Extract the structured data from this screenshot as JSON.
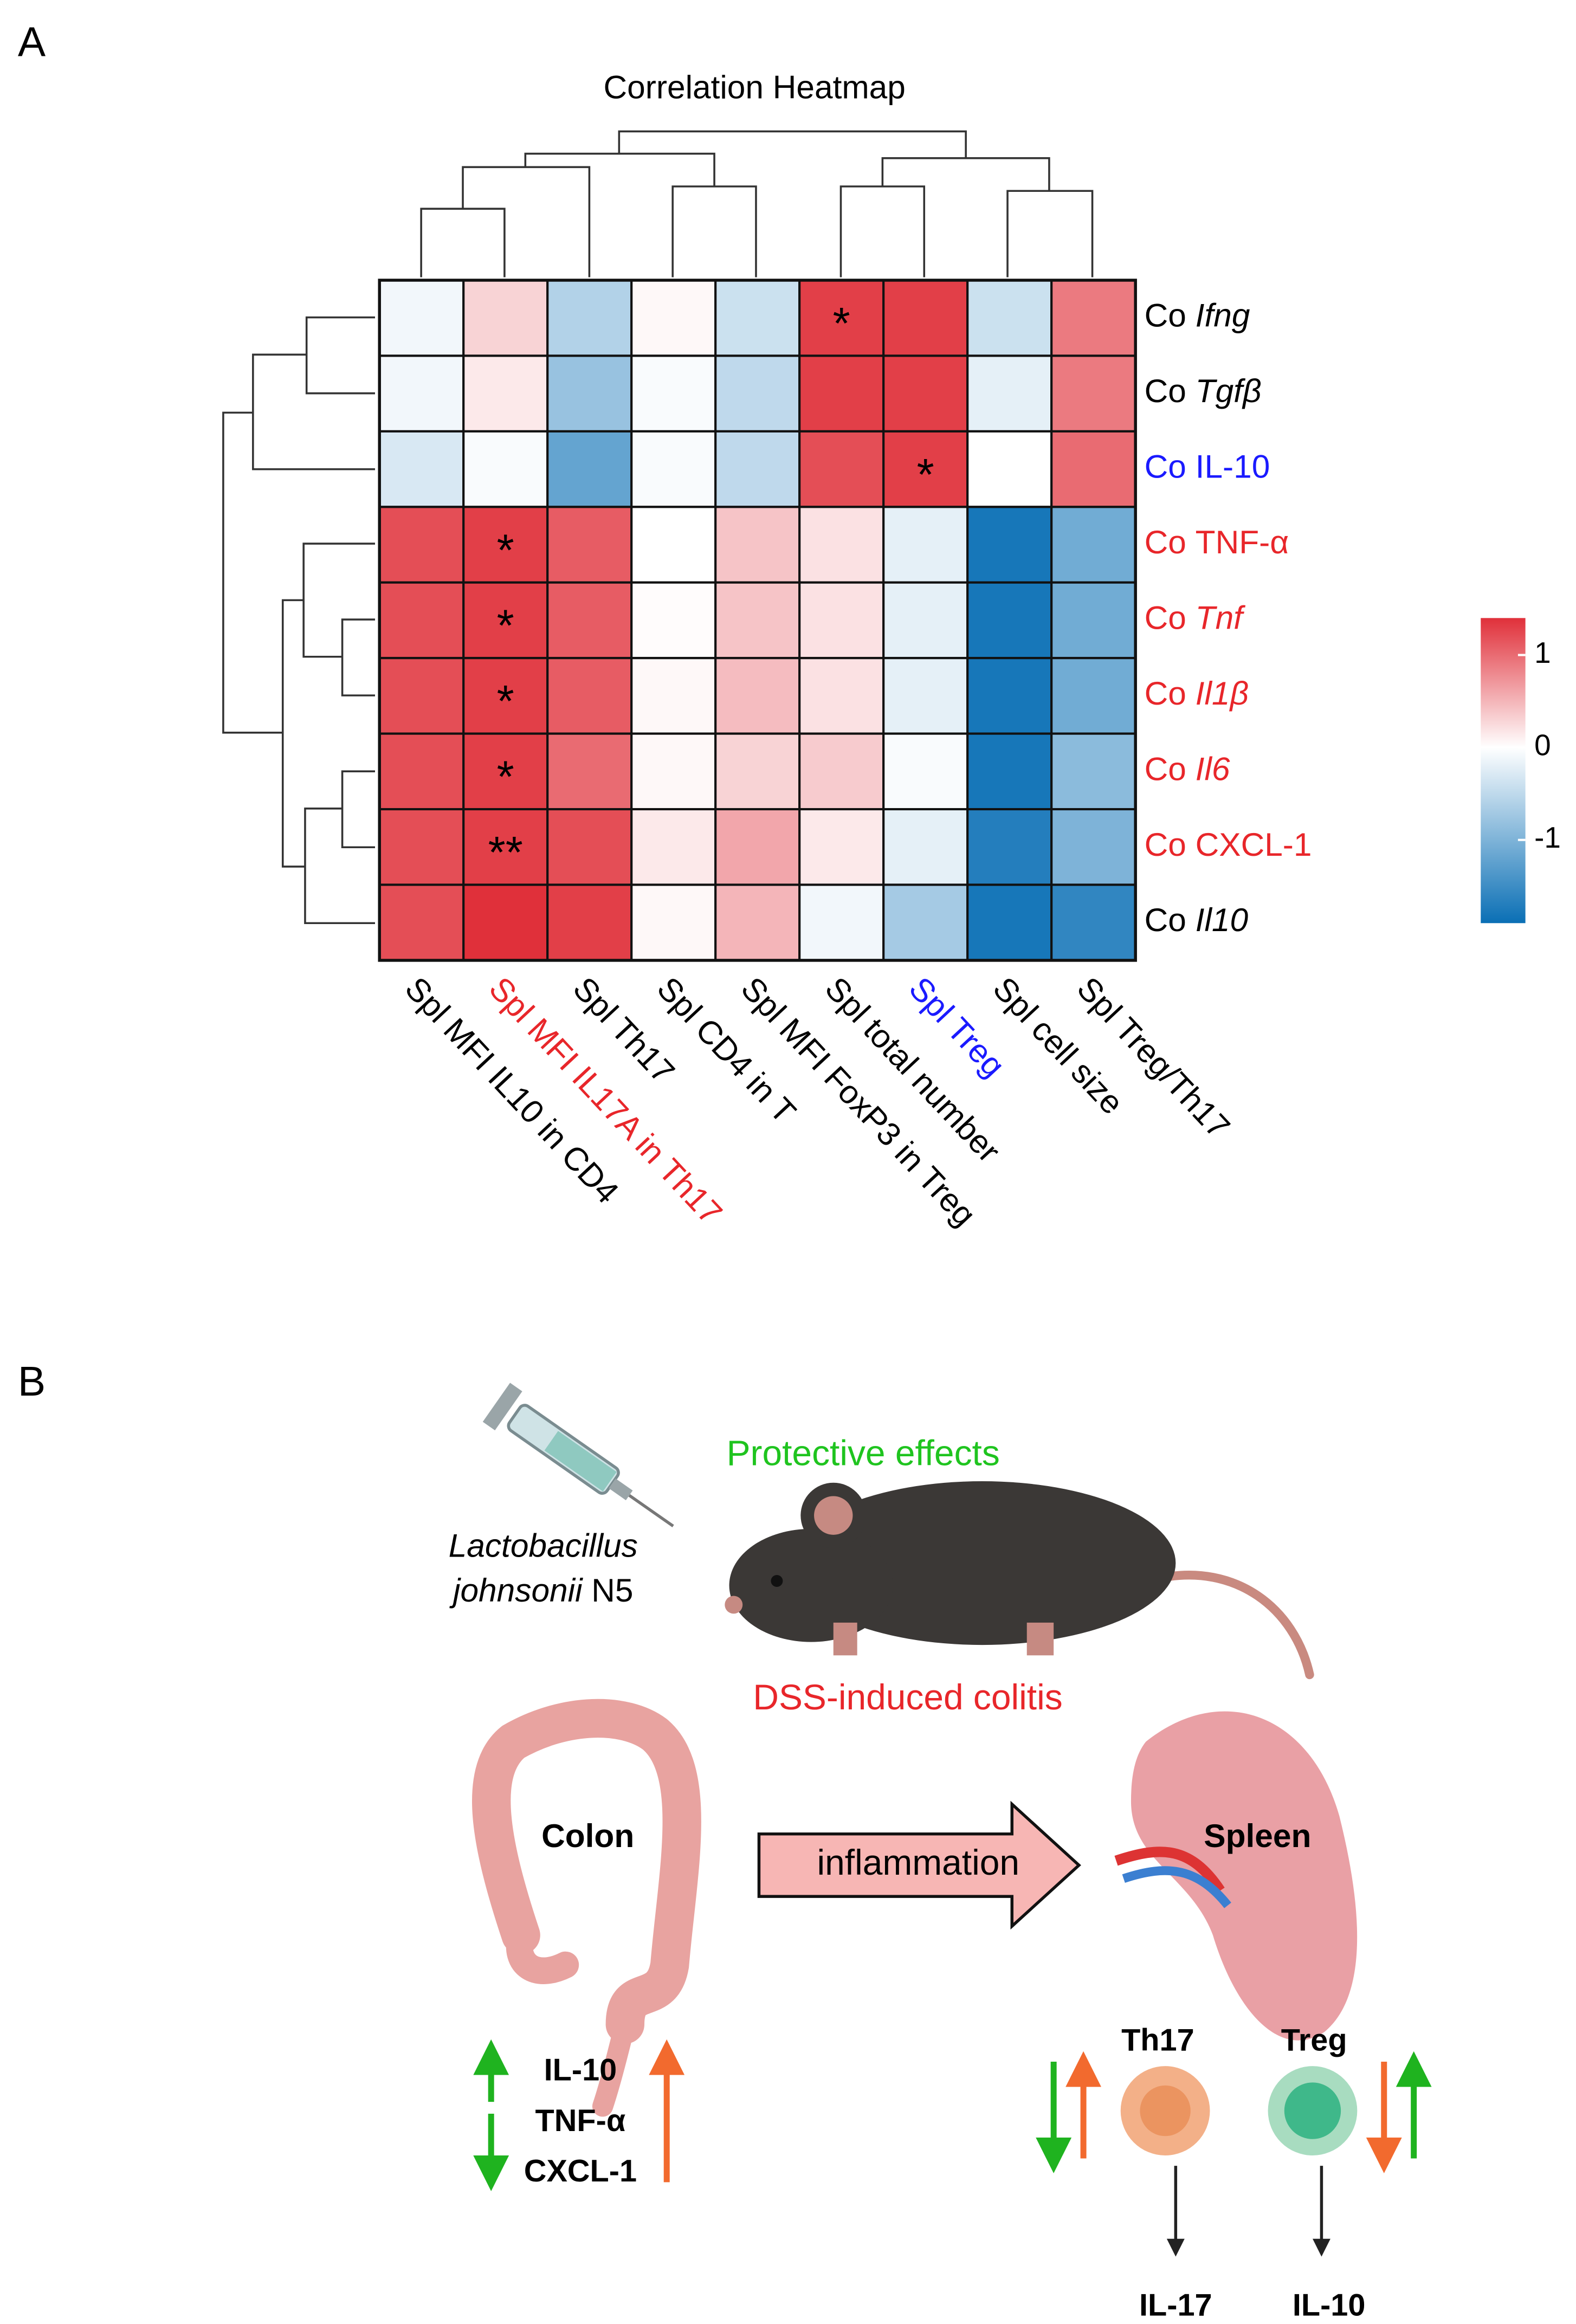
{
  "panel_a_label": "A",
  "chart_data": {
    "type": "heatmap",
    "title": "Correlation Heatmap",
    "x_categories": [
      {
        "text": "Spl MFI IL10 in CD4",
        "color": "#000000"
      },
      {
        "text": "Spl MFI IL17A in Th17",
        "color": "#e8262a"
      },
      {
        "text": "Spl Th17",
        "color": "#000000"
      },
      {
        "text": "Spl CD4 in T",
        "color": "#000000"
      },
      {
        "text": "Spl MFI FoxP3 in Treg",
        "color": "#000000"
      },
      {
        "text": "Spl total number",
        "color": "#000000"
      },
      {
        "text": "Spl Treg",
        "color": "#1a1aff"
      },
      {
        "text": "Spl cell size",
        "color": "#000000"
      },
      {
        "text": "Spl Treg/Th17",
        "color": "#000000"
      }
    ],
    "y_categories": [
      {
        "prefix": "Co",
        "name": "Ifng",
        "italic": true,
        "color": "#000000"
      },
      {
        "prefix": "Co",
        "name": "Tgfβ",
        "italic": true,
        "color": "#000000"
      },
      {
        "prefix": "Co",
        "name": "IL-10",
        "italic": false,
        "color": "#1a1aff"
      },
      {
        "prefix": "Co",
        "name": "TNF-α",
        "italic": false,
        "color": "#e8262a"
      },
      {
        "prefix": "Co",
        "name": "Tnf",
        "italic": true,
        "color": "#e8262a"
      },
      {
        "prefix": "Co",
        "name": "Il1β",
        "italic": true,
        "color": "#e8262a"
      },
      {
        "prefix": "Co",
        "name": "Il6",
        "italic": true,
        "color": "#e8262a"
      },
      {
        "prefix": "Co",
        "name": "CXCL-1",
        "italic": false,
        "color": "#e8262a"
      },
      {
        "prefix": "Co",
        "name": "Il10",
        "italic": true,
        "color": "#000000"
      }
    ],
    "values": [
      [
        -0.1,
        0.3,
        -0.6,
        0.05,
        -0.4,
        1.3,
        1.3,
        -0.4,
        0.9
      ],
      [
        -0.1,
        0.15,
        -0.8,
        -0.05,
        -0.5,
        1.3,
        1.3,
        -0.2,
        0.9
      ],
      [
        -0.3,
        -0.05,
        -1.2,
        -0.05,
        -0.5,
        1.2,
        1.3,
        0,
        1.0
      ],
      [
        1.2,
        1.3,
        1.1,
        0,
        0.4,
        0.2,
        -0.2,
        -1.8,
        -1.1
      ],
      [
        1.2,
        1.3,
        1.1,
        0.02,
        0.4,
        0.2,
        -0.2,
        -1.8,
        -1.1
      ],
      [
        1.2,
        1.3,
        1.1,
        0.05,
        0.45,
        0.2,
        -0.2,
        -1.8,
        -1.1
      ],
      [
        1.2,
        1.3,
        1.0,
        0.05,
        0.3,
        0.35,
        -0.05,
        -1.8,
        -0.9
      ],
      [
        1.2,
        1.3,
        1.2,
        0.15,
        0.6,
        0.15,
        -0.2,
        -1.7,
        -1.0
      ],
      [
        1.2,
        1.4,
        1.3,
        0.05,
        0.5,
        -0.1,
        -0.7,
        -1.8,
        -1.6
      ]
    ],
    "cell_labels": [
      [
        null,
        null,
        null,
        null,
        null,
        "*",
        null,
        null,
        null
      ],
      [
        null,
        null,
        null,
        null,
        null,
        null,
        null,
        null,
        null
      ],
      [
        null,
        null,
        null,
        null,
        null,
        null,
        "*",
        null,
        null
      ],
      [
        null,
        "*",
        null,
        null,
        null,
        null,
        null,
        null,
        null
      ],
      [
        null,
        "*",
        null,
        null,
        null,
        null,
        null,
        null,
        null
      ],
      [
        null,
        "*",
        null,
        null,
        null,
        null,
        null,
        null,
        null
      ],
      [
        null,
        "*",
        null,
        null,
        null,
        null,
        null,
        null,
        null
      ],
      [
        null,
        "**",
        null,
        null,
        null,
        null,
        null,
        null,
        null
      ],
      [
        null,
        null,
        null,
        null,
        null,
        null,
        null,
        null,
        null
      ]
    ],
    "zlim": [
      -1.9,
      1.4
    ],
    "zticks": [
      1,
      0,
      -1
    ],
    "colors": {
      "low": "#0a6fb5",
      "mid": "#ffffff",
      "high": "#e0303a"
    }
  },
  "panel_b": {
    "label": "B",
    "effect": "Protective effects",
    "agent": {
      "genus": "Lactobacillus",
      "species": "johnsonii",
      "strain": "N5"
    },
    "model": "DSS-induced colitis",
    "colon": "Colon",
    "process": "inflammation",
    "spleen": "Spleen",
    "colon_markers": [
      "IL-10",
      "TNF-α",
      "CXCL-1"
    ],
    "cells": [
      {
        "name": "Th17",
        "output": "IL-17"
      },
      {
        "name": "Treg",
        "output": "IL-10"
      }
    ]
  }
}
